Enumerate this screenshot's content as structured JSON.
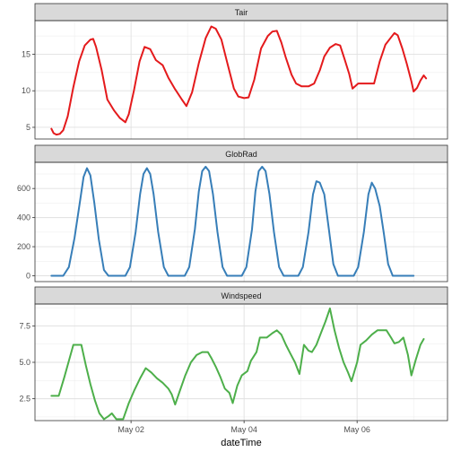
{
  "chart_data": {
    "type": "line",
    "xlabel": "dateTime",
    "x_unit": "day of May",
    "xlim": [
      0.3,
      7.6
    ],
    "x_ticks": [
      {
        "value": 2,
        "label": "May 02"
      },
      {
        "value": 4,
        "label": "May 04"
      },
      {
        "value": 6,
        "label": "May 06"
      }
    ],
    "grid": true,
    "panels": [
      {
        "title": "Tair",
        "color": "#e41a1c",
        "ylim": [
          3.4,
          19.6
        ],
        "y_ticks": [
          {
            "value": 5,
            "label": "5"
          },
          {
            "value": 10,
            "label": "10"
          },
          {
            "value": 15,
            "label": "15"
          }
        ],
        "points": [
          [
            0.59,
            4.8
          ],
          [
            0.63,
            4.2
          ],
          [
            0.68,
            4.0
          ],
          [
            0.74,
            4.1
          ],
          [
            0.8,
            4.6
          ],
          [
            0.88,
            6.5
          ],
          [
            0.98,
            10.5
          ],
          [
            1.08,
            14.0
          ],
          [
            1.18,
            16.2
          ],
          [
            1.28,
            17.0
          ],
          [
            1.33,
            17.1
          ],
          [
            1.38,
            16.0
          ],
          [
            1.48,
            12.8
          ],
          [
            1.58,
            8.8
          ],
          [
            1.7,
            7.3
          ],
          [
            1.8,
            6.3
          ],
          [
            1.9,
            5.7
          ],
          [
            1.96,
            6.8
          ],
          [
            2.05,
            10.0
          ],
          [
            2.15,
            14.0
          ],
          [
            2.24,
            16.0
          ],
          [
            2.34,
            15.7
          ],
          [
            2.44,
            14.2
          ],
          [
            2.56,
            13.5
          ],
          [
            2.66,
            11.8
          ],
          [
            2.78,
            10.2
          ],
          [
            2.9,
            8.8
          ],
          [
            2.98,
            7.9
          ],
          [
            3.08,
            9.8
          ],
          [
            3.2,
            13.8
          ],
          [
            3.32,
            17.2
          ],
          [
            3.42,
            18.8
          ],
          [
            3.5,
            18.5
          ],
          [
            3.6,
            17.0
          ],
          [
            3.72,
            13.3
          ],
          [
            3.82,
            10.3
          ],
          [
            3.9,
            9.2
          ],
          [
            4.0,
            9.0
          ],
          [
            4.08,
            9.1
          ],
          [
            4.18,
            11.5
          ],
          [
            4.3,
            15.8
          ],
          [
            4.42,
            17.5
          ],
          [
            4.5,
            18.1
          ],
          [
            4.58,
            18.2
          ],
          [
            4.66,
            16.6
          ],
          [
            4.74,
            14.5
          ],
          [
            4.84,
            12.2
          ],
          [
            4.92,
            11.0
          ],
          [
            5.02,
            10.6
          ],
          [
            5.14,
            10.6
          ],
          [
            5.24,
            11.0
          ],
          [
            5.34,
            12.8
          ],
          [
            5.42,
            14.7
          ],
          [
            5.52,
            15.9
          ],
          [
            5.62,
            16.4
          ],
          [
            5.7,
            16.2
          ],
          [
            5.78,
            14.3
          ],
          [
            5.86,
            12.3
          ],
          [
            5.92,
            10.3
          ],
          [
            6.02,
            11.0
          ],
          [
            6.12,
            11.0
          ],
          [
            6.3,
            11.0
          ],
          [
            6.4,
            14.0
          ],
          [
            6.5,
            16.3
          ],
          [
            6.6,
            17.3
          ],
          [
            6.66,
            17.9
          ],
          [
            6.72,
            17.6
          ],
          [
            6.8,
            15.8
          ],
          [
            6.88,
            13.7
          ],
          [
            6.96,
            11.3
          ],
          [
            7.0,
            9.9
          ],
          [
            7.06,
            10.4
          ],
          [
            7.12,
            11.4
          ],
          [
            7.18,
            12.1
          ],
          [
            7.22,
            11.7
          ]
        ]
      },
      {
        "title": "GlobRad",
        "color": "#377eb8",
        "ylim": [
          -40,
          780
        ],
        "y_ticks": [
          {
            "value": 0,
            "label": "0"
          },
          {
            "value": 200,
            "label": "200"
          },
          {
            "value": 400,
            "label": "400"
          },
          {
            "value": 600,
            "label": "600"
          }
        ],
        "points": [
          [
            0.59,
            0
          ],
          [
            0.8,
            0
          ],
          [
            0.9,
            60
          ],
          [
            1.0,
            260
          ],
          [
            1.1,
            520
          ],
          [
            1.16,
            680
          ],
          [
            1.22,
            740
          ],
          [
            1.28,
            690
          ],
          [
            1.35,
            500
          ],
          [
            1.43,
            250
          ],
          [
            1.52,
            40
          ],
          [
            1.6,
            0
          ],
          [
            1.9,
            0
          ],
          [
            1.98,
            60
          ],
          [
            2.08,
            300
          ],
          [
            2.16,
            560
          ],
          [
            2.22,
            700
          ],
          [
            2.28,
            740
          ],
          [
            2.34,
            700
          ],
          [
            2.4,
            560
          ],
          [
            2.48,
            300
          ],
          [
            2.58,
            60
          ],
          [
            2.66,
            0
          ],
          [
            2.95,
            0
          ],
          [
            3.03,
            60
          ],
          [
            3.13,
            320
          ],
          [
            3.2,
            580
          ],
          [
            3.26,
            720
          ],
          [
            3.32,
            750
          ],
          [
            3.38,
            720
          ],
          [
            3.45,
            560
          ],
          [
            3.53,
            300
          ],
          [
            3.62,
            60
          ],
          [
            3.7,
            0
          ],
          [
            3.96,
            0
          ],
          [
            4.04,
            60
          ],
          [
            4.14,
            320
          ],
          [
            4.2,
            580
          ],
          [
            4.26,
            720
          ],
          [
            4.32,
            750
          ],
          [
            4.38,
            720
          ],
          [
            4.45,
            560
          ],
          [
            4.53,
            300
          ],
          [
            4.62,
            60
          ],
          [
            4.7,
            0
          ],
          [
            4.96,
            0
          ],
          [
            5.04,
            60
          ],
          [
            5.14,
            300
          ],
          [
            5.22,
            560
          ],
          [
            5.28,
            650
          ],
          [
            5.34,
            640
          ],
          [
            5.42,
            560
          ],
          [
            5.5,
            320
          ],
          [
            5.58,
            80
          ],
          [
            5.66,
            0
          ],
          [
            5.94,
            0
          ],
          [
            6.02,
            60
          ],
          [
            6.12,
            300
          ],
          [
            6.2,
            560
          ],
          [
            6.26,
            640
          ],
          [
            6.32,
            600
          ],
          [
            6.4,
            480
          ],
          [
            6.47,
            300
          ],
          [
            6.55,
            80
          ],
          [
            6.63,
            0
          ],
          [
            7.0,
            0
          ]
        ]
      },
      {
        "title": "Windspeed",
        "color": "#4daf4a",
        "ylim": [
          1.0,
          9.0
        ],
        "y_ticks": [
          {
            "value": 2.5,
            "label": "2.5"
          },
          {
            "value": 5.0,
            "label": "5.0"
          },
          {
            "value": 7.5,
            "label": "7.5"
          }
        ],
        "points": [
          [
            0.59,
            2.7
          ],
          [
            0.72,
            2.7
          ],
          [
            0.82,
            4.0
          ],
          [
            0.9,
            5.1
          ],
          [
            0.98,
            6.2
          ],
          [
            1.06,
            6.2
          ],
          [
            1.12,
            6.2
          ],
          [
            1.2,
            4.8
          ],
          [
            1.28,
            3.5
          ],
          [
            1.36,
            2.4
          ],
          [
            1.44,
            1.5
          ],
          [
            1.52,
            1.1
          ],
          [
            1.6,
            1.3
          ],
          [
            1.66,
            1.5
          ],
          [
            1.74,
            1.1
          ],
          [
            1.86,
            1.1
          ],
          [
            1.96,
            2.2
          ],
          [
            2.06,
            3.1
          ],
          [
            2.16,
            3.9
          ],
          [
            2.26,
            4.6
          ],
          [
            2.36,
            4.3
          ],
          [
            2.46,
            3.9
          ],
          [
            2.56,
            3.6
          ],
          [
            2.66,
            3.2
          ],
          [
            2.72,
            2.8
          ],
          [
            2.78,
            2.1
          ],
          [
            2.86,
            3.0
          ],
          [
            2.96,
            4.1
          ],
          [
            3.06,
            5.0
          ],
          [
            3.16,
            5.5
          ],
          [
            3.26,
            5.7
          ],
          [
            3.36,
            5.7
          ],
          [
            3.42,
            5.3
          ],
          [
            3.5,
            4.7
          ],
          [
            3.58,
            4.0
          ],
          [
            3.66,
            3.2
          ],
          [
            3.74,
            2.9
          ],
          [
            3.8,
            2.2
          ],
          [
            3.88,
            3.4
          ],
          [
            3.96,
            4.1
          ],
          [
            4.06,
            4.4
          ],
          [
            4.12,
            5.1
          ],
          [
            4.22,
            5.7
          ],
          [
            4.28,
            6.7
          ],
          [
            4.4,
            6.7
          ],
          [
            4.5,
            7.0
          ],
          [
            4.58,
            7.2
          ],
          [
            4.66,
            6.9
          ],
          [
            4.74,
            6.2
          ],
          [
            4.82,
            5.6
          ],
          [
            4.9,
            5.0
          ],
          [
            4.98,
            4.2
          ],
          [
            5.06,
            6.2
          ],
          [
            5.14,
            5.8
          ],
          [
            5.2,
            5.7
          ],
          [
            5.28,
            6.2
          ],
          [
            5.36,
            7.0
          ],
          [
            5.44,
            7.8
          ],
          [
            5.52,
            8.7
          ],
          [
            5.6,
            7.2
          ],
          [
            5.68,
            6.0
          ],
          [
            5.76,
            5.0
          ],
          [
            5.84,
            4.3
          ],
          [
            5.9,
            3.7
          ],
          [
            6.0,
            5.0
          ],
          [
            6.06,
            6.2
          ],
          [
            6.16,
            6.5
          ],
          [
            6.26,
            6.9
          ],
          [
            6.36,
            7.2
          ],
          [
            6.46,
            7.2
          ],
          [
            6.52,
            7.2
          ],
          [
            6.6,
            6.7
          ],
          [
            6.66,
            6.3
          ],
          [
            6.74,
            6.4
          ],
          [
            6.82,
            6.7
          ],
          [
            6.9,
            5.5
          ],
          [
            6.96,
            4.1
          ],
          [
            7.04,
            5.2
          ],
          [
            7.12,
            6.2
          ],
          [
            7.18,
            6.6
          ]
        ]
      }
    ]
  }
}
